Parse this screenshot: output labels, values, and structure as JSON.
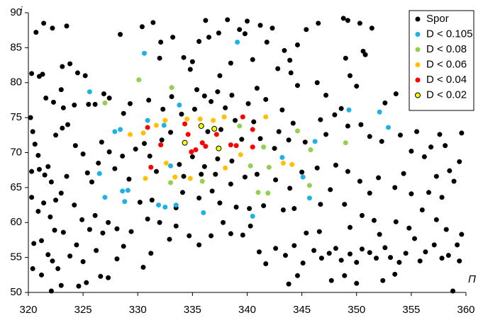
{
  "chart_data": {
    "type": "scatter",
    "x_label": "Π",
    "y_label": "i",
    "xlim": [
      320,
      360
    ],
    "xticks": [
      320,
      325,
      330,
      335,
      340,
      345,
      350,
      355,
      360
    ],
    "ylim": [
      50,
      90
    ],
    "yticks": [
      50,
      55,
      60,
      65,
      70,
      75,
      80,
      85,
      90
    ],
    "grid": false,
    "legend": "upper right",
    "series": [
      {
        "name": "Spor",
        "color": "#000000",
        "x": [
          320.7,
          321.4,
          322.2,
          323.5,
          330.4,
          331.4,
          332.1,
          333.2,
          336.2,
          337.4,
          338.2,
          339.3,
          339.8,
          340.0,
          341.2,
          342.3,
          344.6,
          345.4,
          346.5,
          348.8,
          349.2,
          350.3,
          351.4,
          335.6,
          336.5,
          341.8,
          343.4,
          342.8,
          343.9,
          350.6,
          350.8,
          344.0,
          349.0,
          349.4,
          340.5,
          338.5,
          337.5,
          334.2,
          334.8,
          335.0,
          332.0,
          328.4,
          323.1,
          323.8,
          324.5,
          325.2,
          320.3,
          321.0,
          321.3,
          323.0,
          321.6,
          322.3,
          323.2,
          324.2,
          325.5,
          326.1,
          326.9,
          327.4,
          328.7,
          329.3,
          331.0,
          332.3,
          333.1,
          335.4,
          336.1,
          336.7,
          337.3,
          338.0,
          338.6,
          340.1,
          340.9,
          341.7,
          343.2,
          344.6,
          346.4,
          347.2,
          348.6,
          350.0,
          352.6,
          353.6,
          355.0,
          320.2,
          320.4,
          320.6,
          320.9,
          320.3,
          321.0,
          321.5,
          321.8,
          322.1,
          320.3,
          320.9,
          321.4,
          322.0,
          322.5,
          323.0,
          323.5,
          322.5,
          323.1,
          323.6,
          324.3,
          325.0,
          325.4,
          325.8,
          326.4,
          326.7,
          327.4,
          327.9,
          328.6,
          329.2,
          324.2,
          324.9,
          325.6,
          326.1,
          326.8,
          327.3,
          328.1,
          328.7,
          329.4,
          323.2,
          322.4,
          321.2,
          320.5,
          321.8,
          320.4,
          321.2,
          322.2,
          322.7,
          322.1,
          323.0,
          324.6,
          325.3,
          326.6,
          327.3,
          323.8,
          324.4,
          325.0,
          326.2,
          328.1,
          330.5,
          331.2,
          332.9,
          333.5,
          334.7,
          335.6,
          336.7,
          337.8,
          338.5,
          339.6,
          340.3,
          341.1,
          341.7,
          342.6,
          343.5,
          344.3,
          345.1,
          346.1,
          346.8,
          347.5,
          348.1,
          348.6,
          349.4,
          350.0,
          350.5,
          351.2,
          351.8,
          352.6,
          353.1,
          353.9,
          354.5,
          355.3,
          355.8,
          356.3,
          357.1,
          357.8,
          358.4,
          359.2,
          359.6,
          359.4,
          343.8,
          344.6,
          347.7,
          348.9,
          350.0,
          352.4,
          358.8,
          353.5,
          345.4,
          346.6,
          349.4,
          350.5,
          351.6,
          352.1,
          353.6,
          354.8,
          356.0,
          357.3,
          358.2,
          355.0,
          356.6,
          357.8,
          358.9,
          359.4,
          358.5,
          357.3,
          356.2,
          355.0,
          354.3,
          353.5,
          352.0,
          351.2,
          350.3,
          349.2,
          348.1,
          347.6,
          346.7,
          348.9,
          344.3,
          343.3,
          341.5,
          340.2,
          339.0,
          337.5,
          336.8,
          335.6,
          334.1,
          333.5,
          331.3,
          330.2,
          330.9,
          332.0,
          356.8,
          357.6,
          358.1,
          359.6,
          355.5,
          354.0,
          352.3,
          351.2,
          350.4,
          349.2,
          348.0,
          347.2,
          346.7,
          345.3,
          344.2,
          343.8,
          342.9,
          342.5,
          341.2,
          340.6,
          339.5,
          338.9,
          337.6,
          336.4,
          335.2,
          334.0,
          333.0,
          332.2,
          331.1,
          330.6,
          329.8,
          337.3,
          338.6,
          336.1,
          335.0,
          335.8,
          337.1,
          338.5,
          339.8,
          340.9,
          342.6,
          343.9,
          345.0,
          346.4,
          331.7,
          333.8,
          334.2
        ],
        "values": [
          87.2,
          88.5,
          87.8,
          88.1,
          88.0,
          88.6,
          85.8,
          86.5,
          88.9,
          87.1,
          89.0,
          87.6,
          87.0,
          88.8,
          88.2,
          87.8,
          85.4,
          87.6,
          88.5,
          89.2,
          88.9,
          88.5,
          87.8,
          85.9,
          86.5,
          85.8,
          84.6,
          82.0,
          83.2,
          84.5,
          84.0,
          81.4,
          83.5,
          81.0,
          83.3,
          82.8,
          81.0,
          83.6,
          81.9,
          83.0,
          83.5,
          86.9,
          82.3,
          82.7,
          81.4,
          81.0,
          81.3,
          80.9,
          81.2,
          79.0,
          77.8,
          77.2,
          76.4,
          76.8,
          76.9,
          76.9,
          78.4,
          77.8,
          75.6,
          77.0,
          77.5,
          76.2,
          78.0,
          79.0,
          78.1,
          77.3,
          78.7,
          76.4,
          78.2,
          77.0,
          79.2,
          77.6,
          76.1,
          79.6,
          80.0,
          78.2,
          76.3,
          79.5,
          77.1,
          78.4,
          79.2,
          75.0,
          73.0,
          71.2,
          69.6,
          67.3,
          67.6,
          66.8,
          68.0,
          65.8,
          63.6,
          61.6,
          62.8,
          60.8,
          63.2,
          64.2,
          66.6,
          72.5,
          73.5,
          74.0,
          71.0,
          69.8,
          67.1,
          65.8,
          68.5,
          71.5,
          70.1,
          67.7,
          69.5,
          66.2,
          62.5,
          60.4,
          59.0,
          61.0,
          58.5,
          60.0,
          59.1,
          56.6,
          58.7,
          58.6,
          58.9,
          57.4,
          57.0,
          55.4,
          53.4,
          52.5,
          54.5,
          53.4,
          50.2,
          51.0,
          50.9,
          51.4,
          52.3,
          52.1,
          55.2,
          56.8,
          54.4,
          56.0,
          54.8,
          53.6,
          55.6,
          57.6,
          59.5,
          58.1,
          56.8,
          58.1,
          60.0,
          58.4,
          58.2,
          59.5,
          55.8,
          54.1,
          56.3,
          55.3,
          56.7,
          54.2,
          56.0,
          54.9,
          55.6,
          56.3,
          54.6,
          55.5,
          54.3,
          56.2,
          55.7,
          54.9,
          56.4,
          55.0,
          54.3,
          55.6,
          57.7,
          54.5,
          55.8,
          56.8,
          54.9,
          55.3,
          56.8,
          58.3,
          54.5,
          51.2,
          52.4,
          51.7,
          52.4,
          51.3,
          51.7,
          50.2,
          52.6,
          58.5,
          58.7,
          59.3,
          61.0,
          60.3,
          58.3,
          60.1,
          59.2,
          61.8,
          60.4,
          59.0,
          64.1,
          64.3,
          63.6,
          65.9,
          68.7,
          67.4,
          66.6,
          69.4,
          70.2,
          67.0,
          65.0,
          66.4,
          64.2,
          65.9,
          67.3,
          68.2,
          64.7,
          62.6,
          62.6,
          62.0,
          61.8,
          62.4,
          62.0,
          62.2,
          62.8,
          64.5,
          63.5,
          64.3,
          62.1,
          63.2,
          62.9,
          60.5,
          60.0,
          70.8,
          72.6,
          71.0,
          72.8,
          73.0,
          72.5,
          71.6,
          72.3,
          74.0,
          73.8,
          75.4,
          72.6,
          74.7,
          71.5,
          74.2,
          71.8,
          73.0,
          70.6,
          72.0,
          74.4,
          71.9,
          74.6,
          73.3,
          73.0,
          76.2,
          75.5,
          72.9,
          71.8,
          69.5,
          71.3,
          70.5,
          69.1,
          68.8,
          68.0,
          69.4,
          66.9,
          66.9,
          65.5,
          66.5,
          66.9,
          66.1,
          64.9,
          67.2,
          67.8,
          67.3,
          68.3,
          66.6
        ]
      },
      {
        "name": "D < 0.105",
        "color": "#1fb0e8",
        "x": [
          330.6,
          339.1,
          325.6,
          327.9,
          328.4,
          330.9,
          332.4,
          333.8,
          326.5,
          327.0,
          328.6,
          329.1,
          328.8,
          331.9,
          332.5,
          333.5,
          336.0,
          333.0,
          343.2,
          340.5,
          345.1,
          345.7,
          346.2,
          349.3,
          352.1,
          352.9
        ],
        "values": [
          84.2,
          85.8,
          78.7,
          73.0,
          73.3,
          74.6,
          73.9,
          76.8,
          67.0,
          63.6,
          64.5,
          64.6,
          63.0,
          62.5,
          62.2,
          62.5,
          61.4,
          68.1,
          69.3,
          60.9,
          66.5,
          63.5,
          71.6,
          76.1,
          75.8,
          73.6
        ]
      },
      {
        "name": "D < 0.08",
        "color": "#92d050",
        "x": [
          330.1,
          327.0,
          333.1,
          339.3,
          333.0,
          335.9,
          340.3,
          342.0,
          341.0,
          341.9,
          341.5,
          344.6,
          345.8,
          345.7,
          349.0
        ],
        "values": [
          80.4,
          77.1,
          79.3,
          73.8,
          65.7,
          65.9,
          68.1,
          67.9,
          64.3,
          64.2,
          70.8,
          73.1,
          70.4,
          65.3,
          71.4
        ]
      },
      {
        "name": "D < 0.06",
        "color": "#ffc000",
        "x": [
          329.3,
          330.5,
          331.7,
          332.5,
          334.5,
          335.7,
          336.9,
          337.9,
          332.6,
          333.4,
          334.8,
          330.7,
          339.4,
          338.0,
          343.3,
          344.1,
          341.7
        ],
        "values": [
          72.6,
          72.8,
          73.9,
          74.6,
          74.8,
          74.8,
          74.6,
          75.1,
          68.5,
          66.5,
          66.3,
          66.3,
          69.7,
          67.8,
          68.5,
          68.3,
          75.1
        ]
      },
      {
        "name": "D < 0.04",
        "color": "#ff0000",
        "x": [
          330.9,
          332.1,
          334.3,
          334.6,
          335.3,
          335.9,
          336.2,
          337.2,
          339.6,
          340.5,
          340.5,
          338.5,
          339.0,
          331.2,
          334.9
        ],
        "values": [
          73.6,
          71.1,
          74.1,
          72.6,
          70.4,
          71.4,
          70.9,
          72.6,
          75.1,
          73.3,
          70.8,
          71.1,
          71.0,
          67.9,
          70.1
        ]
      },
      {
        "name": "D < 0.02",
        "color": "#ffff00",
        "edge_color": "#000000",
        "x": [
          334.3,
          335.8,
          337.0,
          337.4
        ],
        "values": [
          71.4,
          73.8,
          73.4,
          70.6
        ]
      }
    ]
  }
}
